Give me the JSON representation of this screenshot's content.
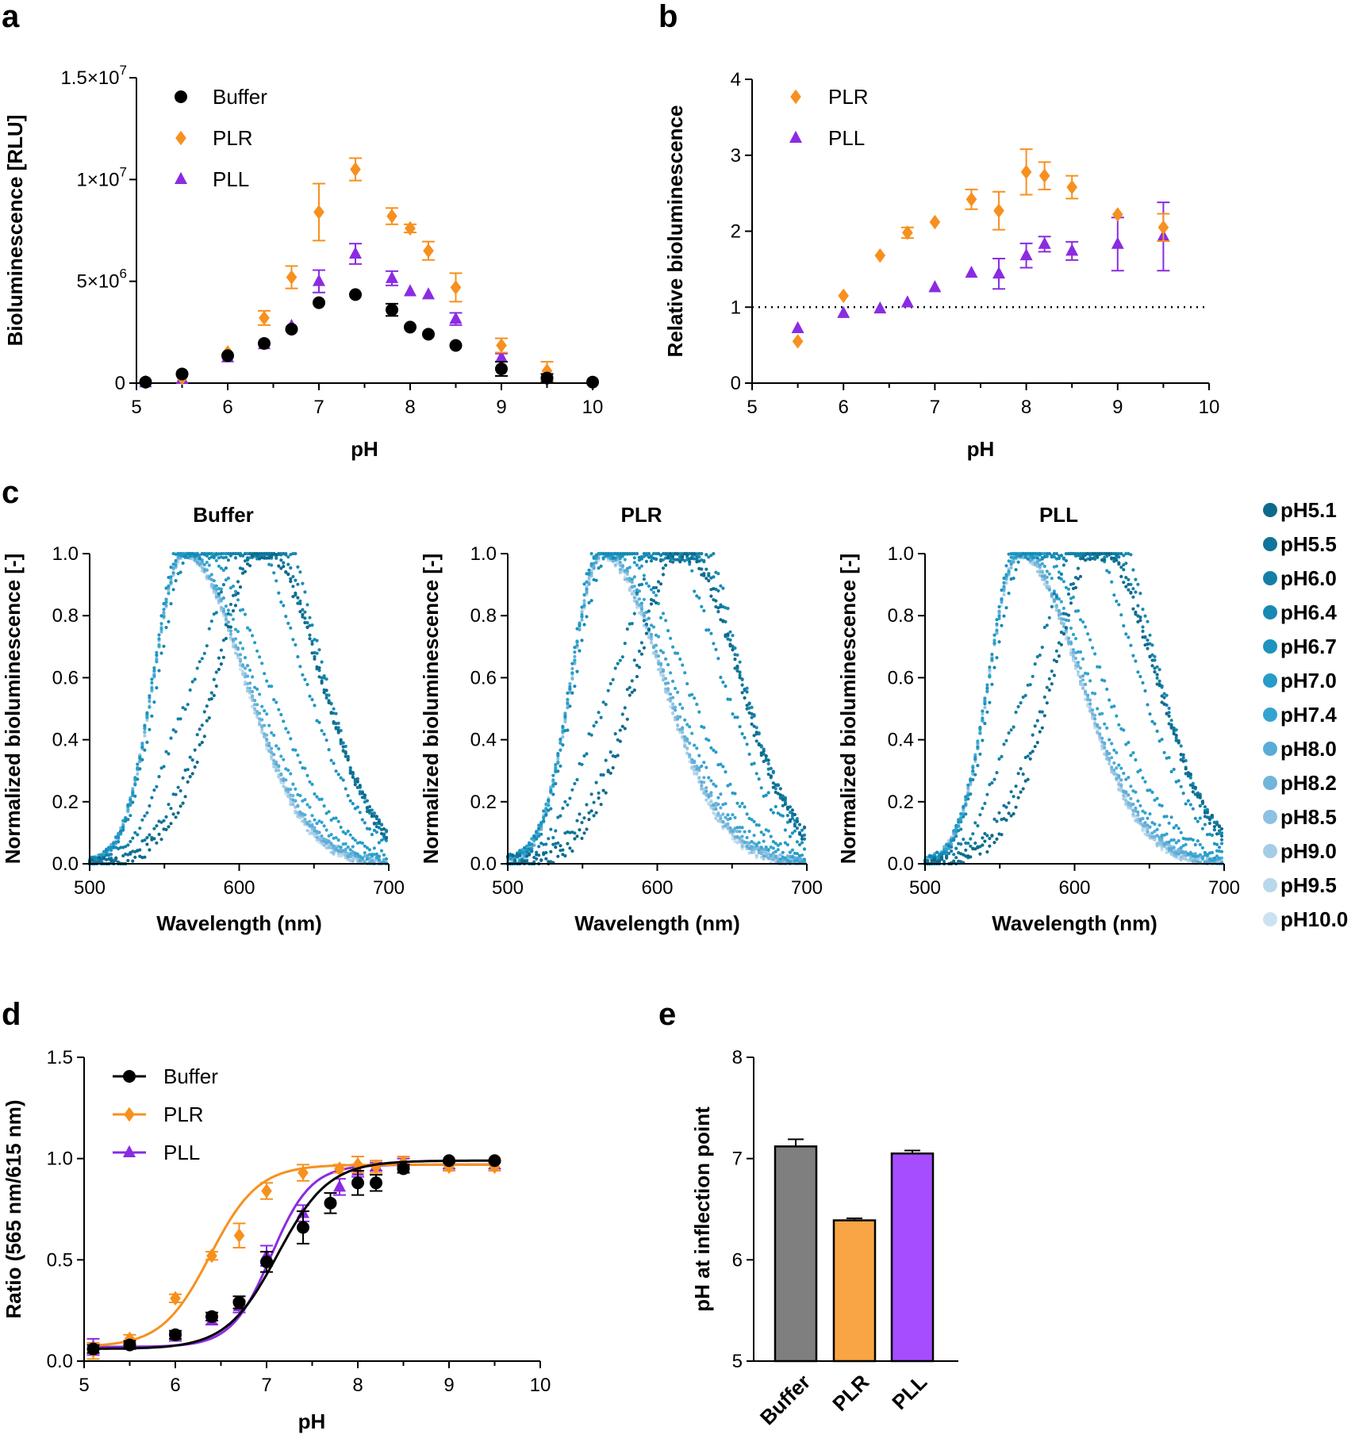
{
  "panels": {
    "a": "a",
    "b": "b",
    "c": "c",
    "d": "d",
    "e": "e"
  },
  "chart_data": [
    {
      "id": "a",
      "type": "scatter",
      "xlabel": "pH",
      "ylabel": "Bioluminescence [RLU]",
      "xlim": [
        5,
        10
      ],
      "ylim": [
        0,
        15000000
      ],
      "xticks": [
        "5",
        "6",
        "7",
        "8",
        "9",
        "10"
      ],
      "yticks": [
        {
          "value": 0,
          "label": "0"
        },
        {
          "value": 5000000,
          "base": "5×10",
          "exp": "6"
        },
        {
          "value": 10000000,
          "base": "1×10",
          "exp": "7"
        },
        {
          "value": 15000000,
          "base": "1.5×10",
          "exp": "7"
        }
      ],
      "legend": [
        "Buffer",
        "PLR",
        "PLL"
      ],
      "series": [
        {
          "name": "Buffer",
          "color": "#000000",
          "marker": "circle",
          "x": [
            5.1,
            5.5,
            6.0,
            6.4,
            6.7,
            7.0,
            7.4,
            7.8,
            8.0,
            8.2,
            8.5,
            9.0,
            9.5,
            10.0
          ],
          "y": [
            50000.0,
            450000.0,
            1350000.0,
            1950000.0,
            2650000.0,
            3950000.0,
            4350000.0,
            3600000.0,
            2750000.0,
            2400000.0,
            1850000.0,
            700000.0,
            250000.0,
            50000.0
          ],
          "err": [
            50000.0,
            50000.0,
            150000.0,
            100000.0,
            100000.0,
            150000.0,
            100000.0,
            300000.0,
            100000.0,
            100000.0,
            100000.0,
            350000.0,
            200000.0,
            20000.0
          ]
        },
        {
          "name": "PLR",
          "color": "#F7901E",
          "marker": "diamond",
          "x": [
            5.1,
            5.5,
            6.0,
            6.4,
            6.7,
            7.0,
            7.4,
            7.8,
            8.0,
            8.2,
            8.5,
            9.0,
            9.5
          ],
          "y": [
            50000.0,
            250000.0,
            1500000.0,
            3200000.0,
            5200000.0,
            8400000.0,
            10500000.0,
            8200000.0,
            7600000.0,
            6500000.0,
            4700000.0,
            1850000.0,
            600000.0
          ],
          "err": [
            50000.0,
            100000.0,
            150000.0,
            350000.0,
            550000.0,
            1400000.0,
            550000.0,
            400000.0,
            200000.0,
            450000.0,
            700000.0,
            350000.0,
            450000.0
          ]
        },
        {
          "name": "PLL",
          "color": "#8B2BE2",
          "marker": "triangle",
          "x": [
            5.1,
            5.5,
            6.0,
            6.4,
            6.7,
            7.0,
            7.4,
            7.8,
            8.0,
            8.2,
            8.5,
            9.0,
            9.5
          ],
          "y": [
            30000.0,
            200000.0,
            1250000.0,
            1900000.0,
            2800000.0,
            5000000.0,
            6350000.0,
            5150000.0,
            4500000.0,
            4350000.0,
            3150000.0,
            1250000.0,
            400000.0
          ],
          "err": [
            30000.0,
            50000.0,
            100000.0,
            100000.0,
            150000.0,
            550000.0,
            500000.0,
            350000.0,
            150000.0,
            100000.0,
            300000.0,
            200000.0,
            150000.0
          ]
        }
      ]
    },
    {
      "id": "b",
      "type": "scatter",
      "xlabel": "pH",
      "ylabel": "Relative bioluminescence",
      "xlim": [
        5,
        10
      ],
      "ylim": [
        0,
        4
      ],
      "xticks": [
        "5",
        "6",
        "7",
        "8",
        "9",
        "10"
      ],
      "yticks": [
        "0",
        "1",
        "2",
        "3",
        "4"
      ],
      "reference_line": 1,
      "legend": [
        "PLR",
        "PLL"
      ],
      "series": [
        {
          "name": "PLR",
          "color": "#F7901E",
          "marker": "diamond",
          "x": [
            5.5,
            6.0,
            6.4,
            6.7,
            7.0,
            7.4,
            7.7,
            8.0,
            8.2,
            8.5,
            9.0,
            9.5
          ],
          "y": [
            0.55,
            1.15,
            1.68,
            1.98,
            2.12,
            2.42,
            2.27,
            2.78,
            2.73,
            2.58,
            2.22,
            2.05
          ],
          "err": [
            0.02,
            0.03,
            0.03,
            0.07,
            0.04,
            0.13,
            0.25,
            0.3,
            0.18,
            0.15,
            0.04,
            0.18
          ]
        },
        {
          "name": "PLL",
          "color": "#8B2BE2",
          "marker": "triangle",
          "x": [
            5.5,
            6.0,
            6.4,
            6.7,
            7.0,
            7.4,
            7.7,
            8.0,
            8.2,
            8.5,
            9.0,
            9.5
          ],
          "y": [
            0.72,
            0.92,
            0.98,
            1.06,
            1.26,
            1.45,
            1.44,
            1.68,
            1.83,
            1.74,
            1.83,
            1.93
          ],
          "err": [
            0.02,
            0.03,
            0.03,
            0.04,
            0.04,
            0.05,
            0.2,
            0.16,
            0.1,
            0.12,
            0.35,
            0.45
          ]
        }
      ]
    },
    {
      "id": "c",
      "type": "scatter",
      "subplots": [
        {
          "title": "Buffer",
          "noise": 1.0
        },
        {
          "title": "PLR",
          "noise": 1.8
        },
        {
          "title": "PLL",
          "noise": 1.2
        }
      ],
      "xlabel": "Wavelength (nm)",
      "ylabel": "Normalized bioluminescence [-]",
      "xlim": [
        500,
        700
      ],
      "ylim": [
        0,
        1
      ],
      "xticks": [
        "500",
        "600",
        "700"
      ],
      "yticks": [
        "0.0",
        "0.2",
        "0.4",
        "0.6",
        "0.8",
        "1.0"
      ],
      "series": [
        {
          "name": "pH5.1",
          "color": "#0E6A8A",
          "peak_nm": 615,
          "shoulder": 0.05
        },
        {
          "name": "pH5.5",
          "color": "#11749A",
          "peak_nm": 615,
          "shoulder": 0.1
        },
        {
          "name": "pH6.0",
          "color": "#147FA6",
          "peak_nm": 613,
          "shoulder": 0.25
        },
        {
          "name": "pH6.4",
          "color": "#1789B2",
          "peak_nm": 610,
          "shoulder": 0.45
        },
        {
          "name": "pH6.7",
          "color": "#1D93BF",
          "peak_nm": 598,
          "shoulder": 0.62
        },
        {
          "name": "pH7.0",
          "color": "#269CC8",
          "peak_nm": 578,
          "shoulder": 0.82
        },
        {
          "name": "pH7.4",
          "color": "#33A4D0",
          "peak_nm": 570,
          "shoulder": 0.92
        },
        {
          "name": "pH8.0",
          "color": "#5AACD6",
          "peak_nm": 566,
          "shoulder": 0.97
        },
        {
          "name": "pH8.2",
          "color": "#72B5DB",
          "peak_nm": 565,
          "shoulder": 0.98
        },
        {
          "name": "pH8.5",
          "color": "#8DC1E1",
          "peak_nm": 565,
          "shoulder": 0.99
        },
        {
          "name": "pH9.0",
          "color": "#A5CDE6",
          "peak_nm": 564,
          "shoulder": 1.0
        },
        {
          "name": "pH9.5",
          "color": "#B8D8EC",
          "peak_nm": 564,
          "shoulder": 1.0
        },
        {
          "name": "pH10.0",
          "color": "#CBE2F1",
          "peak_nm": 563,
          "shoulder": 1.0
        }
      ]
    },
    {
      "id": "d",
      "type": "line",
      "xlabel": "pH",
      "ylabel": "Ratio (565 nm/615 nm)",
      "xlim": [
        5,
        10
      ],
      "ylim": [
        0,
        1.5
      ],
      "xticks": [
        "5",
        "6",
        "7",
        "8",
        "9",
        "10"
      ],
      "yticks": [
        "0.0",
        "0.5",
        "1.0",
        "1.5"
      ],
      "legend": [
        "Buffer",
        "PLR",
        "PLL"
      ],
      "series": [
        {
          "name": "Buffer",
          "color": "#000000",
          "marker": "circle",
          "x": [
            5.1,
            5.5,
            6.0,
            6.4,
            6.7,
            7.0,
            7.4,
            7.7,
            8.0,
            8.2,
            8.5,
            9.0,
            9.5
          ],
          "y": [
            0.06,
            0.08,
            0.13,
            0.22,
            0.29,
            0.49,
            0.66,
            0.78,
            0.88,
            0.88,
            0.95,
            0.99,
            0.99
          ],
          "err": [
            0.02,
            0.02,
            0.02,
            0.02,
            0.03,
            0.05,
            0.08,
            0.05,
            0.06,
            0.04,
            0.02,
            0.01,
            0.01
          ],
          "fit": {
            "bottom": 0.06,
            "top": 0.99,
            "ec50": 7.12,
            "slope": 1.55
          }
        },
        {
          "name": "PLR",
          "color": "#F7901E",
          "marker": "diamond",
          "x": [
            5.1,
            5.5,
            6.0,
            6.4,
            6.7,
            7.0,
            7.4,
            7.8,
            8.0,
            8.2,
            8.5,
            9.0,
            9.5
          ],
          "y": [
            0.05,
            0.11,
            0.31,
            0.52,
            0.62,
            0.84,
            0.93,
            0.95,
            0.97,
            0.96,
            0.98,
            0.96,
            0.96
          ],
          "err": [
            0.04,
            0.02,
            0.02,
            0.02,
            0.06,
            0.04,
            0.04,
            0.02,
            0.04,
            0.03,
            0.03,
            0.02,
            0.02
          ],
          "fit": {
            "bottom": 0.07,
            "top": 0.97,
            "ec50": 6.38,
            "slope": 1.65
          }
        },
        {
          "name": "PLL",
          "color": "#8B2BE2",
          "marker": "triangle",
          "x": [
            5.1,
            5.5,
            6.0,
            6.4,
            6.7,
            7.0,
            7.4,
            7.8,
            8.0,
            8.2,
            8.5,
            9.0,
            9.5
          ],
          "y": [
            0.07,
            0.08,
            0.12,
            0.2,
            0.27,
            0.52,
            0.73,
            0.86,
            0.94,
            0.96,
            0.98,
            0.97,
            0.97
          ],
          "err": [
            0.04,
            0.02,
            0.02,
            0.02,
            0.03,
            0.05,
            0.04,
            0.04,
            0.03,
            0.02,
            0.02,
            0.02,
            0.02
          ],
          "fit": {
            "bottom": 0.07,
            "top": 0.97,
            "ec50": 7.05,
            "slope": 2.0
          }
        }
      ]
    },
    {
      "id": "e",
      "type": "bar",
      "xlabel": "",
      "ylabel": "pH at inflection point",
      "ylim": [
        5,
        8
      ],
      "yticks": [
        "5",
        "6",
        "7",
        "8"
      ],
      "categories": [
        "Buffer",
        "PLR",
        "PLL"
      ],
      "values": [
        7.12,
        6.39,
        7.05
      ],
      "errors": [
        0.07,
        0.02,
        0.03
      ],
      "colors": [
        "#7F7F7F",
        "#F9A545",
        "#A64DFF"
      ]
    }
  ]
}
